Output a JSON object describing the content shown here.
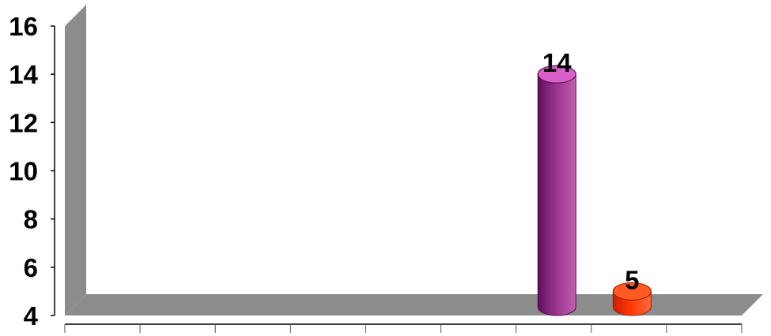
{
  "chart_data": {
    "type": "bar",
    "style": "3d-cylinder",
    "categories": [
      "",
      "",
      "",
      "",
      "",
      "",
      "",
      "",
      ""
    ],
    "values": [
      null,
      null,
      null,
      null,
      null,
      null,
      14,
      5,
      null
    ],
    "data_labels": [
      "",
      "",
      "",
      "",
      "",
      "",
      "14",
      "5",
      ""
    ],
    "bar_colors": [
      "",
      "",
      "",
      "",
      "",
      "",
      "#a0308f",
      "#ff3300",
      ""
    ],
    "title": "",
    "xlabel": "",
    "ylabel": "",
    "ylim": [
      4,
      16
    ],
    "y_ticks": [
      4,
      6,
      8,
      10,
      12,
      14,
      16
    ],
    "y_tick_labels": [
      "4",
      "6",
      "8",
      "10",
      "12",
      "14",
      "16"
    ],
    "grid": false,
    "legend": "none",
    "colors": {
      "wall": "#8c8c8c",
      "floor": "#8c8c8c",
      "axis": "#000000"
    }
  }
}
